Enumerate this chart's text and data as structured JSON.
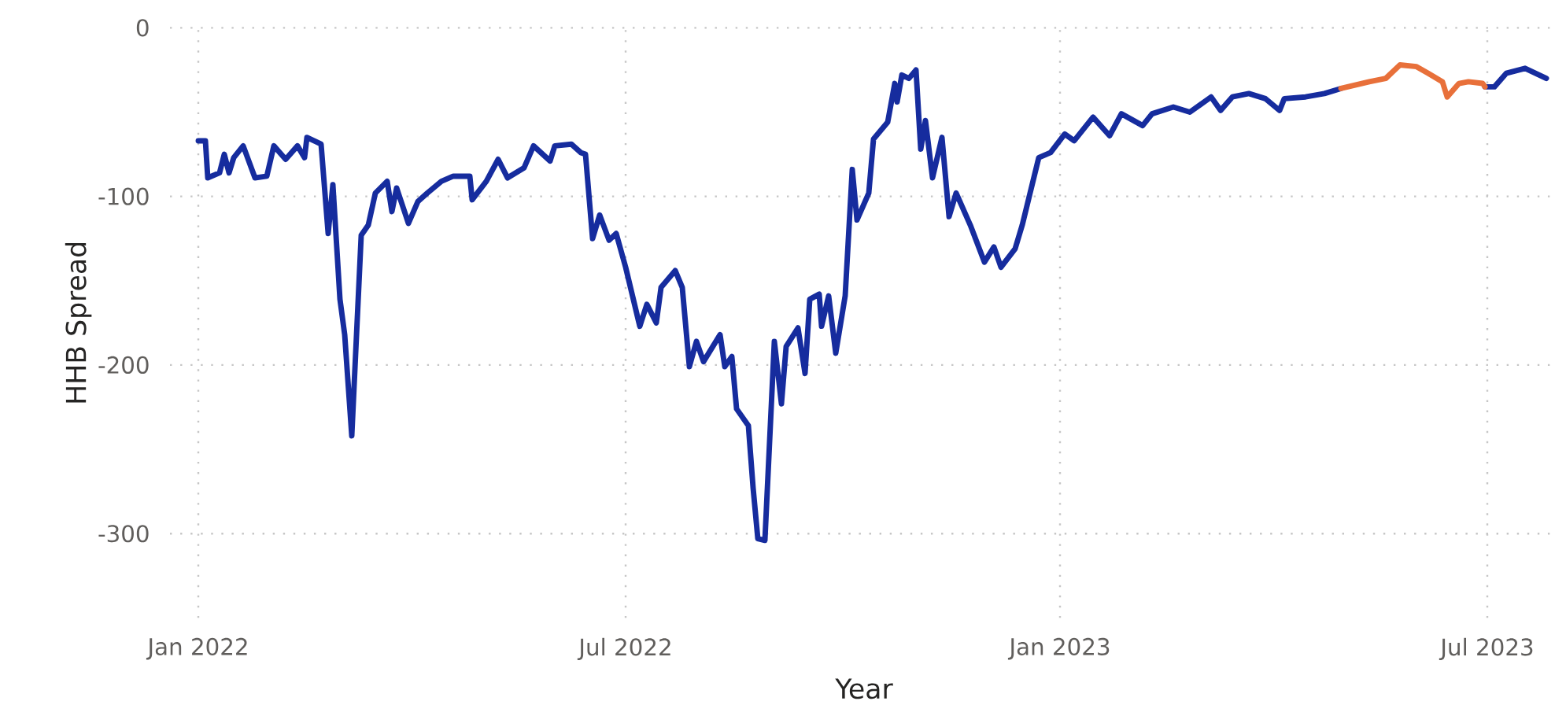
{
  "chart_data": {
    "type": "line",
    "xlabel": "Year",
    "ylabel": "HHB Spread",
    "xlim": [
      "2021-12-20",
      "2023-07-31"
    ],
    "ylim": [
      -350,
      0
    ],
    "xticks": [
      {
        "value": "2022-01-01",
        "label": "Jan 2022"
      },
      {
        "value": "2022-07-01",
        "label": "Jul 2022"
      },
      {
        "value": "2023-01-01",
        "label": "Jan 2023"
      },
      {
        "value": "2023-07-01",
        "label": "Jul 2023"
      }
    ],
    "yticks": [
      -300,
      -200,
      -100,
      0
    ],
    "grid": true,
    "line_style": "solid",
    "marker": "none",
    "series": [
      {
        "color": "#162c9e",
        "x": [
          "2022-01-01",
          "2022-01-04",
          "2022-01-05",
          "2022-01-10",
          "2022-01-12",
          "2022-01-14",
          "2022-01-16",
          "2022-01-20",
          "2022-01-25",
          "2022-01-30",
          "2022-02-02",
          "2022-02-07",
          "2022-02-12",
          "2022-02-15",
          "2022-02-16",
          "2022-02-22",
          "2022-02-25",
          "2022-02-27",
          "2022-03-02",
          "2022-03-04",
          "2022-03-07",
          "2022-03-11",
          "2022-03-14",
          "2022-03-17",
          "2022-03-22",
          "2022-03-24",
          "2022-03-26",
          "2022-03-31",
          "2022-04-04",
          "2022-04-08",
          "2022-04-14",
          "2022-04-19",
          "2022-04-26",
          "2022-04-27",
          "2022-05-03",
          "2022-05-08",
          "2022-05-12",
          "2022-05-19",
          "2022-05-23",
          "2022-05-30",
          "2022-06-01",
          "2022-06-08",
          "2022-06-12",
          "2022-06-14",
          "2022-06-17",
          "2022-06-20",
          "2022-06-24",
          "2022-06-27",
          "2022-07-01",
          "2022-07-07",
          "2022-07-10",
          "2022-07-14",
          "2022-07-16",
          "2022-07-22",
          "2022-07-25",
          "2022-07-28",
          "2022-07-31",
          "2022-08-03",
          "2022-08-10",
          "2022-08-12",
          "2022-08-15",
          "2022-08-17",
          "2022-08-22",
          "2022-08-24",
          "2022-08-26",
          "2022-08-29",
          "2022-09-02",
          "2022-09-05",
          "2022-09-07",
          "2022-09-12",
          "2022-09-15",
          "2022-09-17",
          "2022-09-21",
          "2022-09-22",
          "2022-09-25",
          "2022-09-28",
          "2022-10-02",
          "2022-10-05",
          "2022-10-07",
          "2022-10-12",
          "2022-10-14",
          "2022-10-20",
          "2022-10-23",
          "2022-10-24",
          "2022-10-26",
          "2022-10-29",
          "2022-11-01",
          "2022-11-03",
          "2022-11-05",
          "2022-11-08",
          "2022-11-12",
          "2022-11-15",
          "2022-11-18",
          "2022-11-24",
          "2022-11-30",
          "2022-12-04",
          "2022-12-07",
          "2022-12-13",
          "2022-12-16",
          "2022-12-23",
          "2022-12-28",
          "2023-01-03",
          "2023-01-07",
          "2023-01-15",
          "2023-01-22",
          "2023-01-27",
          "2023-02-05",
          "2023-02-09",
          "2023-02-18",
          "2023-02-25",
          "2023-03-06",
          "2023-03-10",
          "2023-03-15",
          "2023-03-22",
          "2023-03-29",
          "2023-04-04",
          "2023-04-06",
          "2023-04-15",
          "2023-04-23",
          "2023-04-30",
          "2023-05-31",
          "2023-06-30",
          "2023-07-04",
          "2023-07-09",
          "2023-07-17",
          "2023-07-26"
        ],
        "values": [
          -67,
          -67,
          -89,
          -86,
          -75,
          -86,
          -77,
          -70,
          -89,
          -88,
          -70,
          -78,
          -70,
          -77,
          -65,
          -69,
          -122,
          -93,
          -161,
          -182,
          -242,
          -123,
          -117,
          -98,
          -91,
          -109,
          -95,
          -116,
          -103,
          -98,
          -91,
          -88,
          -88,
          -102,
          -91,
          -78,
          -89,
          -83,
          -70,
          -79,
          -70,
          -69,
          -74,
          -75,
          -125,
          -111,
          -126,
          -122,
          -142,
          -177,
          -164,
          -175,
          -154,
          -144,
          -154,
          -201,
          -186,
          -198,
          -182,
          -201,
          -195,
          -226,
          -236,
          -273,
          -303,
          -304,
          -186,
          -223,
          -189,
          -178,
          -205,
          -161,
          -158,
          -177,
          -159,
          -193,
          -159,
          -84,
          -114,
          -98,
          -66,
          -56,
          -33,
          -44,
          -28,
          -30,
          -25,
          -72,
          -55,
          -89,
          -65,
          -112,
          -98,
          -117,
          -139,
          -130,
          -142,
          -131,
          -117,
          -77,
          -74,
          -63,
          -67,
          -53,
          -64,
          -51,
          -58,
          -51,
          -47,
          -50,
          -41,
          -49,
          -41,
          -39,
          -42,
          -49,
          -42,
          -41,
          -39,
          -36,
          null,
          -35,
          -35,
          -27,
          -24,
          -30
        ]
      },
      {
        "color": "#e8703a",
        "x": [
          "2023-04-30",
          "2023-05-12",
          "2023-05-19",
          "2023-05-25",
          "2023-06-01",
          "2023-06-06",
          "2023-06-12",
          "2023-06-14",
          "2023-06-19",
          "2023-06-23",
          "2023-06-29",
          "2023-06-30"
        ],
        "values": [
          -36,
          -32,
          -30,
          -22,
          -23,
          -27,
          -32,
          -41,
          -33,
          -32,
          -33,
          -35
        ]
      }
    ]
  }
}
